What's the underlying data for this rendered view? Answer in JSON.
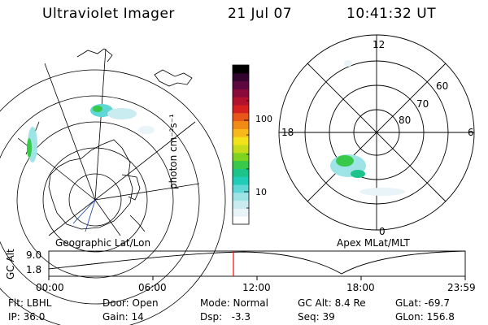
{
  "header": {
    "title": "Ultraviolet Imager",
    "date": "21 Jul 07",
    "time": "10:41:32 UT"
  },
  "colorbar": {
    "unit_label": "photon cm⁻²s⁻¹",
    "ticks": [
      "100",
      "10"
    ],
    "colors": [
      "#ffffff",
      "#e8f4f8",
      "#c8ecf0",
      "#9ee3e6",
      "#5fd7d6",
      "#1fcdb8",
      "#1cc48a",
      "#38c94a",
      "#7ed321",
      "#c6dc1b",
      "#f2e21a",
      "#f7b81a",
      "#f28a16",
      "#e8561a",
      "#d62020",
      "#b3122e",
      "#8a0a3a",
      "#5e0840",
      "#33052e",
      "#000000"
    ]
  },
  "geo_map": {
    "caption": "Geographic Lat/Lon"
  },
  "polar_plot": {
    "caption": "Apex MLat/MLT",
    "mlt_labels": {
      "top": "12",
      "bottom": "0",
      "left": "18",
      "right": "6"
    },
    "lat_labels": [
      "60",
      "70",
      "80"
    ]
  },
  "altitude_plot": {
    "ylabel": "GC Alt",
    "y_ticks": [
      "9.0",
      "1.8"
    ],
    "x_ticks": [
      "00:00",
      "06:00",
      "12:00",
      "18:00",
      "23:59"
    ],
    "marker_color": "#ff0000"
  },
  "status": {
    "row1": {
      "filter": "Flt: LBHL",
      "door": "Door: Open",
      "mode": "Mode: Normal",
      "gc_alt": "GC Alt: 8.4 Re",
      "glat": "GLat: -69.7"
    },
    "row2": {
      "ip": "IP: 36.0",
      "gain": "Gain: 14",
      "dsp": "Dsp:   -3.3",
      "seq": "Seq: 39",
      "glon": "GLon: 156.8"
    }
  }
}
